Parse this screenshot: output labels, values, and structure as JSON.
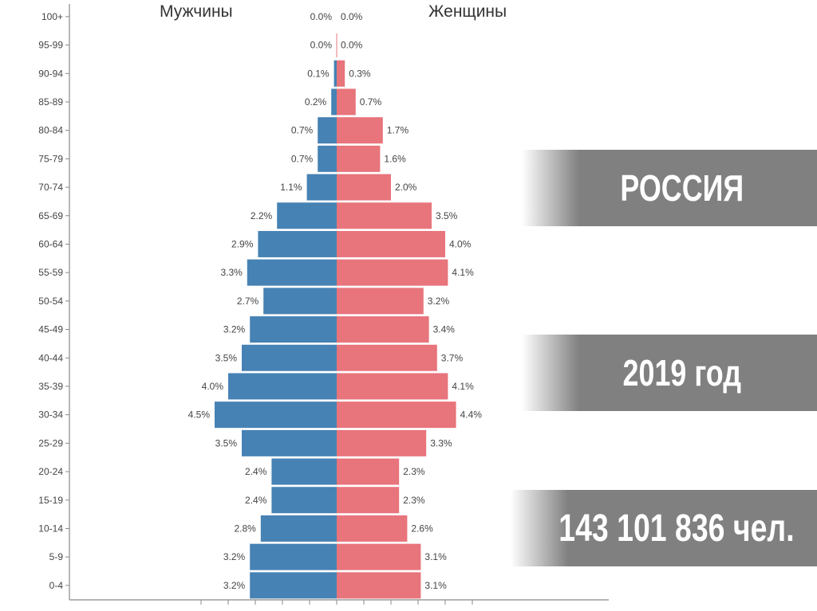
{
  "headers": {
    "men": "Мужчины",
    "women": "Женщины"
  },
  "banners": {
    "country": "РОССИЯ",
    "year": "2019 год",
    "population": "143 101 836 чел."
  },
  "colors": {
    "men": "#4682b4",
    "women": "#e8747c",
    "banner": "#808080"
  },
  "chart_data": {
    "type": "bar",
    "orientation": "horizontal",
    "categories": [
      "100+",
      "95-99",
      "90-94",
      "85-89",
      "80-84",
      "75-79",
      "70-74",
      "65-69",
      "60-64",
      "55-59",
      "50-54",
      "45-49",
      "40-44",
      "35-39",
      "30-34",
      "25-29",
      "20-24",
      "15-19",
      "10-14",
      "5-9",
      "0-4"
    ],
    "series": [
      {
        "name": "Мужчины",
        "values": [
          0.0,
          0.0,
          0.1,
          0.2,
          0.7,
          0.7,
          1.1,
          2.2,
          2.9,
          3.3,
          2.7,
          3.2,
          3.5,
          4.0,
          4.5,
          3.5,
          2.4,
          2.4,
          2.8,
          3.2,
          3.2
        ],
        "labels": [
          "0.0%",
          "0.0%",
          "0.1%",
          "0.2%",
          "0.7%",
          "0.7%",
          "1.1%",
          "2.2%",
          "2.9%",
          "3.3%",
          "2.7%",
          "3.2%",
          "3.5%",
          "4.0%",
          "4.5%",
          "3.5%",
          "2.4%",
          "2.4%",
          "2.8%",
          "3.2%",
          "3.2%"
        ]
      },
      {
        "name": "Женщины",
        "values": [
          0.0,
          0.0,
          0.3,
          0.7,
          1.7,
          1.6,
          2.0,
          3.5,
          4.0,
          4.1,
          3.2,
          3.4,
          3.7,
          4.1,
          4.4,
          3.3,
          2.3,
          2.3,
          2.6,
          3.1,
          3.1
        ],
        "labels": [
          "0.0%",
          "0.0%",
          "0.3%",
          "0.7%",
          "1.7%",
          "1.6%",
          "2.0%",
          "3.5%",
          "4.0%",
          "4.1%",
          "3.2%",
          "3.4%",
          "3.7%",
          "4.1%",
          "4.4%",
          "3.3%",
          "2.3%",
          "2.3%",
          "2.6%",
          "3.1%",
          "3.1%"
        ]
      }
    ],
    "xlim": [
      -5,
      5
    ]
  }
}
